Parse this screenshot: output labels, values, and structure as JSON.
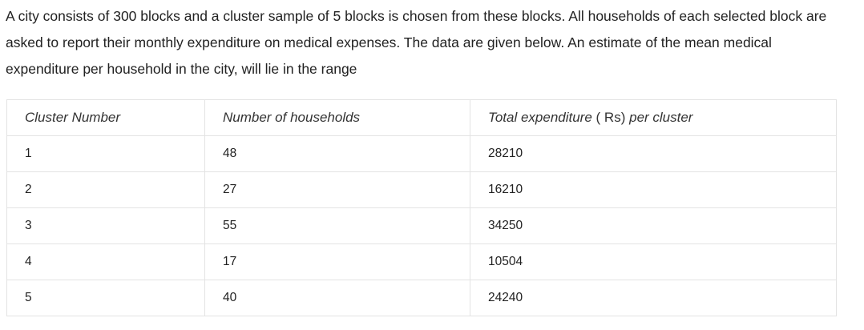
{
  "question": {
    "text": "A city consists of 300 blocks and a cluster sample of 5 blocks is chosen from these blocks.  All households of each selected block are asked to report their monthly expenditure on medical expenses.   The data are given below. An estimate of the mean medical expenditure per household in the city,  will lie in the range"
  },
  "table": {
    "headers": {
      "cluster": "Cluster Number",
      "households": "Number of households",
      "expenditure_pre": "Total expenditure",
      "expenditure_unit": "( Rs)",
      "expenditure_post": "per cluster"
    },
    "rows": [
      {
        "cluster": "1",
        "households": "48",
        "expenditure": "28210"
      },
      {
        "cluster": "2",
        "households": "27",
        "expenditure": "16210"
      },
      {
        "cluster": "3",
        "households": "55",
        "expenditure": "34250"
      },
      {
        "cluster": "4",
        "households": "17",
        "expenditure": "10504"
      },
      {
        "cluster": "5",
        "households": "40",
        "expenditure": "24240"
      }
    ]
  }
}
